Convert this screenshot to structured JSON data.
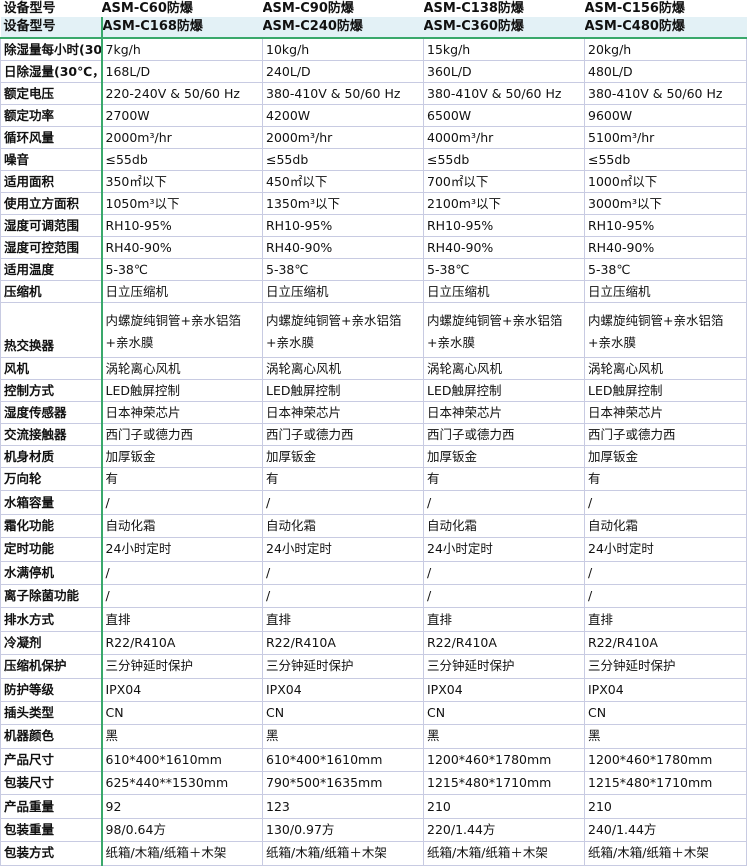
{
  "header": {
    "label_row1": "设备型号",
    "label_row2": "设备型号",
    "models_row1": [
      "ASM-C60防爆",
      "ASM-C90防爆",
      "ASM-C138防爆",
      "ASM-C156防爆"
    ],
    "models_row2": [
      "ASM-C168防爆",
      "ASM-C240防爆",
      "ASM-C360防爆",
      "ASM-C480防爆"
    ]
  },
  "rows": [
    {
      "label": "除湿量每小时(30",
      "values": [
        "7kg/h",
        "10kg/h",
        "15kg/h",
        "20kg/h"
      ]
    },
    {
      "label": "日除湿量(30℃，",
      "values": [
        "168L/D",
        "240L/D",
        "360L/D",
        "480L/D"
      ]
    },
    {
      "label": "额定电压",
      "values": [
        "220-240V & 50/60 Hz",
        "380-410V & 50/60 Hz",
        "380-410V & 50/60 Hz",
        "380-410V & 50/60 Hz"
      ]
    },
    {
      "label": "额定功率",
      "values": [
        "2700W",
        "4200W",
        "6500W",
        "9600W"
      ]
    },
    {
      "label": "循环风量",
      "values": [
        "2000m³/hr",
        "2000m³/hr",
        "4000m³/hr",
        "5100m³/hr"
      ]
    },
    {
      "label": "噪音",
      "values": [
        "≤55db",
        "≤55db",
        "≤55db",
        "≤55db"
      ]
    },
    {
      "label": "适用面积",
      "values": [
        "350㎡以下",
        "450㎡以下",
        "700㎡以下",
        "1000㎡以下"
      ]
    },
    {
      "label": "使用立方面积",
      "values": [
        "1050m³以下",
        "1350m³以下",
        "2100m³以下",
        "3000m³以下"
      ]
    },
    {
      "label": "湿度可调范围",
      "values": [
        "RH10-95%",
        "RH10-95%",
        "RH10-95%",
        "RH10-95%"
      ]
    },
    {
      "label": "湿度可控范围",
      "values": [
        "RH40-90%",
        "RH40-90%",
        "RH40-90%",
        "RH40-90%"
      ]
    },
    {
      "label": "适用温度",
      "values": [
        "5-38℃",
        "5-38℃",
        "5-38℃",
        "5-38℃"
      ]
    },
    {
      "label": "压缩机",
      "values": [
        "日立压缩机",
        "日立压缩机",
        "日立压缩机",
        "日立压缩机"
      ]
    },
    {
      "label": "热交换器",
      "values": [
        "内螺旋纯铜管+亲水铝箔+亲水膜",
        "内螺旋纯铜管+亲水铝箔+亲水膜",
        "内螺旋纯铜管+亲水铝箔+亲水膜",
        "内螺旋纯铜管+亲水铝箔+亲水膜"
      ]
    },
    {
      "label": "风机",
      "values": [
        "涡轮离心风机",
        "涡轮离心风机",
        "涡轮离心风机",
        "涡轮离心风机"
      ]
    },
    {
      "label": "控制方式",
      "values": [
        "LED触屏控制",
        "LED触屏控制",
        "LED触屏控制",
        "LED触屏控制"
      ]
    },
    {
      "label": "湿度传感器",
      "values": [
        "日本神荣芯片",
        "日本神荣芯片",
        "日本神荣芯片",
        "日本神荣芯片"
      ]
    },
    {
      "label": "交流接触器",
      "values": [
        "西门子或德力西",
        "西门子或德力西",
        "西门子或德力西",
        "西门子或德力西"
      ]
    },
    {
      "label": "机身材质",
      "values": [
        "加厚钣金",
        "加厚钣金",
        "加厚钣金",
        "加厚钣金"
      ]
    },
    {
      "label": "万向轮",
      "values": [
        "有",
        "有",
        "有",
        "有"
      ]
    },
    {
      "label": "水箱容量",
      "values": [
        "/",
        "/",
        "/",
        "/"
      ]
    },
    {
      "label": "霜化功能",
      "values": [
        "自动化霜",
        "自动化霜",
        "自动化霜",
        "自动化霜"
      ]
    },
    {
      "label": "定时功能",
      "values": [
        "24小时定时",
        "24小时定时",
        "24小时定时",
        "24小时定时"
      ]
    },
    {
      "label": "水满停机",
      "values": [
        "/",
        "/",
        "/",
        "/"
      ]
    },
    {
      "label": "离子除菌功能",
      "values": [
        "/",
        "/",
        "/",
        "/"
      ]
    },
    {
      "label": "排水方式",
      "values": [
        "直排",
        "直排",
        "直排",
        "直排"
      ]
    },
    {
      "label": "冷凝剂",
      "values": [
        "R22/R410A",
        "R22/R410A",
        "R22/R410A",
        "R22/R410A"
      ]
    },
    {
      "label": "压缩机保护",
      "values": [
        "三分钟延时保护",
        "三分钟延时保护",
        "三分钟延时保护",
        "三分钟延时保护"
      ]
    },
    {
      "label": "防护等级",
      "values": [
        "IPX04",
        "IPX04",
        "IPX04",
        "IPX04"
      ]
    },
    {
      "label": "插头类型",
      "values": [
        "CN",
        "CN",
        "CN",
        "CN"
      ]
    },
    {
      "label": "机器颜色",
      "values": [
        "黑",
        "黑",
        "黑",
        "黑"
      ]
    },
    {
      "label": "产品尺寸",
      "values": [
        "610*400*1610mm",
        "610*400*1610mm",
        "1200*460*1780mm",
        "1200*460*1780mm"
      ]
    },
    {
      "label": "包装尺寸",
      "values": [
        "625*440**1530mm",
        "790*500*1635mm",
        "1215*480*1710mm",
        "1215*480*1710mm"
      ]
    },
    {
      "label": "产品重量",
      "values": [
        "92",
        "123",
        "210",
        "210"
      ]
    },
    {
      "label": "包装重量",
      "values": [
        "98/0.64方",
        "130/0.97方",
        "220/1.44方",
        "240/1.44方"
      ]
    },
    {
      "label": "包装方式",
      "values": [
        "纸箱/木箱/纸箱＋木架",
        "纸箱/木箱/纸箱＋木架",
        "纸箱/木箱/纸箱＋木架",
        "纸箱/木箱/纸箱＋木架"
      ]
    }
  ]
}
